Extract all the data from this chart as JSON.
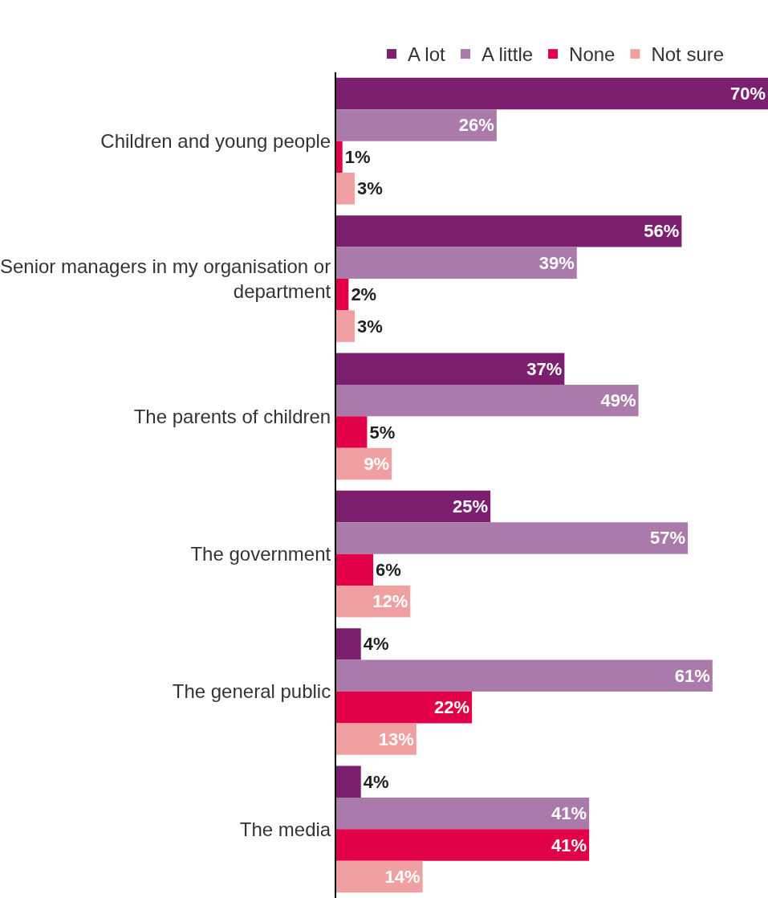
{
  "chart_data": {
    "type": "bar",
    "orientation": "horizontal",
    "legend": "top",
    "categories": [
      "Children and young people",
      "Senior managers in my organisation or department",
      "The parents of children",
      "The government",
      "The general public",
      "The media"
    ],
    "series": [
      {
        "name": "A lot",
        "color": "#7b1f6e",
        "values": [
          70,
          56,
          37,
          25,
          4,
          4
        ],
        "value_labels": [
          "70%",
          "56%",
          "37%",
          "25%",
          "4%",
          "4%"
        ]
      },
      {
        "name": "A little",
        "color": "#a97aaa",
        "values": [
          26,
          39,
          49,
          57,
          61,
          41
        ],
        "value_labels": [
          "26%",
          "39%",
          "49%",
          "57%",
          "61%",
          "41%"
        ]
      },
      {
        "name": "None",
        "color": "#e20049",
        "values": [
          1,
          2,
          5,
          6,
          22,
          41
        ],
        "value_labels": [
          "1%",
          "2%",
          "5%",
          "6%",
          "22%",
          "41%"
        ]
      },
      {
        "name": "Not sure",
        "color": "#f0a0a0",
        "values": [
          3,
          3,
          9,
          12,
          13,
          14
        ],
        "value_labels": [
          "3%",
          "3%",
          "9%",
          "12%",
          "13%",
          "14%"
        ]
      }
    ]
  }
}
